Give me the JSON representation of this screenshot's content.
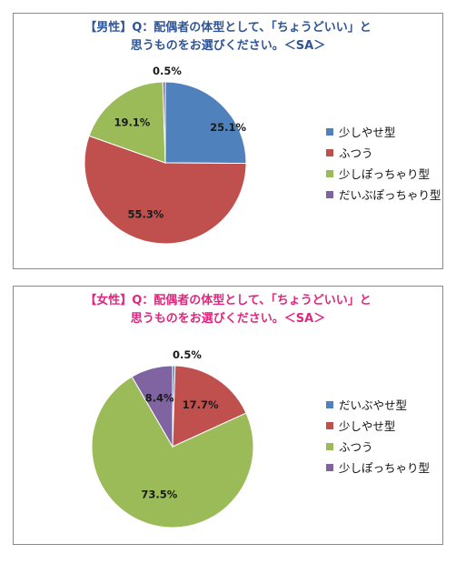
{
  "chart_data": [
    {
      "type": "pie",
      "title": "【男性】Q：配偶者の体型として、「ちょうどいい」と\n思うものをお選びください。＜SA＞",
      "title_color": "#2f5597",
      "legend_position": "right",
      "slices": [
        {
          "label": "少しやせ型",
          "value": 25.1,
          "display": "25.1%",
          "color": "#4f81bd"
        },
        {
          "label": "ふつう",
          "value": 55.3,
          "display": "55.3%",
          "color": "#c0504d"
        },
        {
          "label": "少しぽっちゃり型",
          "value": 19.1,
          "display": "19.1%",
          "color": "#9bbb59"
        },
        {
          "label": "だいぶぽっちゃり型",
          "value": 0.5,
          "display": "0.5%",
          "color": "#8064a2"
        }
      ]
    },
    {
      "type": "pie",
      "title": "【女性】Q：配偶者の体型として、「ちょうどいい」と\n思うものをお選びください。＜SA＞",
      "title_color": "#e0267e",
      "legend_position": "right",
      "slices": [
        {
          "label": "だいぶやせ型",
          "value": 0.5,
          "display": "0.5%",
          "color": "#4f81bd"
        },
        {
          "label": "少しやせ型",
          "value": 17.7,
          "display": "17.7%",
          "color": "#c0504d"
        },
        {
          "label": "ふつう",
          "value": 73.5,
          "display": "73.5%",
          "color": "#9bbb59"
        },
        {
          "label": "少しぽっちゃり型",
          "value": 8.4,
          "display": "8.4%",
          "color": "#8064a2"
        }
      ]
    }
  ]
}
